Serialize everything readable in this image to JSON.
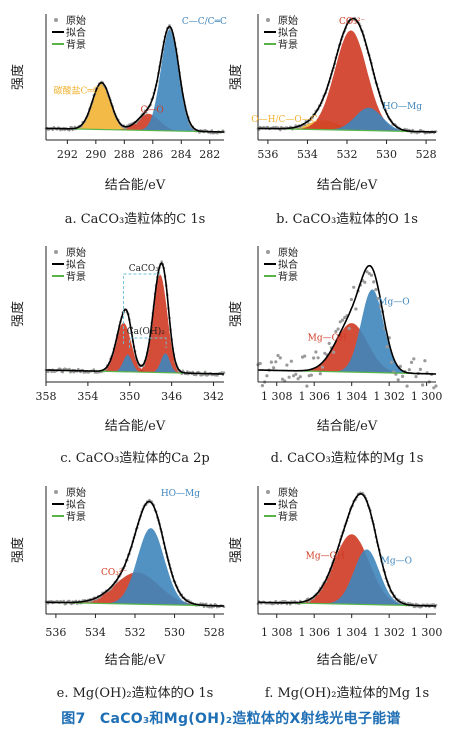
{
  "legend": {
    "raw": "原始",
    "fit": "拟合",
    "bg": "背景"
  },
  "colors": {
    "blue": "#3f86bd",
    "red": "#cf3a23",
    "orange": "#f2b233",
    "bg_line": "#59b54a",
    "points": "#9a9a9a",
    "fit": "#000000",
    "caption": "#1f6fb5"
  },
  "figure_caption": "图7　CaCO₃和Mg(OH)₂造粒体的X射线光电子能谱",
  "chart_data": [
    {
      "type": "line",
      "id": "a",
      "caption": "a. CaCO₃造粒体的C 1s",
      "xlabel": "结合能/eV",
      "ylabel": "强度",
      "xlim": [
        293.5,
        281.0
      ],
      "xticks": [
        "292",
        "290",
        "288",
        "286",
        "284",
        "282"
      ],
      "y_ticks_shown": false,
      "legend_position": "top-left",
      "series": [
        {
          "name": "原始",
          "style": "points"
        },
        {
          "name": "拟合",
          "style": "line"
        },
        {
          "name": "背景",
          "style": "line"
        }
      ],
      "peaks": [
        {
          "label": "碳酸盐C═O",
          "center": 289.6,
          "height": 0.45,
          "fwhm": 1.5,
          "color": "orange"
        },
        {
          "label": "C—O",
          "center": 286.3,
          "height": 0.16,
          "fwhm": 1.8,
          "color": "red"
        },
        {
          "label": "C—C/C═C",
          "center": 284.8,
          "height": 0.98,
          "fwhm": 1.5,
          "color": "blue"
        }
      ]
    },
    {
      "type": "line",
      "id": "b",
      "caption": "b. CaCO₃造粒体的O 1s",
      "xlabel": "结合能/eV",
      "ylabel": "强度",
      "xlim": [
        536.5,
        527.5
      ],
      "xticks": [
        "536",
        "534",
        "532",
        "530",
        "528"
      ],
      "y_ticks_shown": false,
      "legend_position": "top-left",
      "series": [
        {
          "name": "原始",
          "style": "points"
        },
        {
          "name": "拟合",
          "style": "line"
        },
        {
          "name": "背景",
          "style": "line"
        }
      ],
      "peaks": [
        {
          "label": "O—H/C—O—C",
          "center": 533.2,
          "height": 0.09,
          "fwhm": 1.8,
          "color": "orange"
        },
        {
          "label": "CO₃²⁻",
          "center": 531.8,
          "height": 0.96,
          "fwhm": 1.9,
          "color": "red"
        },
        {
          "label": "HO—Mg",
          "center": 530.9,
          "height": 0.22,
          "fwhm": 1.6,
          "color": "blue"
        }
      ]
    },
    {
      "type": "line",
      "id": "c",
      "caption": "c. CaCO₃造粒体的Ca 2p",
      "xlabel": "结合能/eV",
      "ylabel": "强度",
      "xlim": [
        358,
        341
      ],
      "xticks": [
        "358",
        "354",
        "350",
        "346",
        "342"
      ],
      "y_ticks_shown": false,
      "legend_position": "top-left",
      "series": [
        {
          "name": "原始",
          "style": "points"
        },
        {
          "name": "拟合",
          "style": "line"
        },
        {
          "name": "背景",
          "style": "line"
        }
      ],
      "annotations": [
        "CaCO₃",
        "Ca(OH)₂"
      ],
      "peaks": [
        {
          "label": "CaCO₃",
          "center": 350.6,
          "height": 0.43,
          "fwhm": 1.7,
          "color": "red"
        },
        {
          "label": "Ca(OH)₂",
          "center": 350.2,
          "height": 0.15,
          "fwhm": 1.0,
          "color": "blue"
        },
        {
          "label": "CaCO₃",
          "center": 347.1,
          "height": 0.86,
          "fwhm": 1.6,
          "color": "red"
        },
        {
          "label": "Ca(OH)₂",
          "center": 346.6,
          "height": 0.17,
          "fwhm": 1.0,
          "color": "blue"
        }
      ]
    },
    {
      "type": "line",
      "id": "d",
      "caption": "d. CaCO₃造粒体的Mg 1s",
      "xlabel": "结合能/eV",
      "ylabel": "强度",
      "xlim": [
        1309,
        1299.5
      ],
      "xticks": [
        "1 308",
        "1 306",
        "1 304",
        "1 302",
        "1 300"
      ],
      "y_ticks_shown": false,
      "legend_position": "top-left",
      "series": [
        {
          "name": "原始",
          "style": "points"
        },
        {
          "name": "拟合",
          "style": "line"
        },
        {
          "name": "背景",
          "style": "line"
        }
      ],
      "peaks": [
        {
          "label": "Mg—OH",
          "center": 1304.0,
          "height": 0.43,
          "fwhm": 2.0,
          "color": "red"
        },
        {
          "label": "Mg—O",
          "center": 1302.9,
          "height": 0.73,
          "fwhm": 1.4,
          "color": "blue"
        }
      ]
    },
    {
      "type": "line",
      "id": "e",
      "caption": "e. Mg(OH)₂造粒体的O 1s",
      "xlabel": "结合能/eV",
      "ylabel": "强度",
      "xlim": [
        536.5,
        527.5
      ],
      "xticks": [
        "536",
        "534",
        "532",
        "530",
        "528"
      ],
      "y_ticks_shown": false,
      "legend_position": "top-left",
      "series": [
        {
          "name": "原始",
          "style": "points"
        },
        {
          "name": "拟合",
          "style": "line"
        },
        {
          "name": "背景",
          "style": "line"
        }
      ],
      "peaks": [
        {
          "label": "CO₃²⁻",
          "center": 531.9,
          "height": 0.3,
          "fwhm": 2.6,
          "color": "red"
        },
        {
          "label": "HO—Mg",
          "center": 531.2,
          "height": 0.72,
          "fwhm": 1.6,
          "color": "blue"
        }
      ]
    },
    {
      "type": "line",
      "id": "f",
      "caption": "f. Mg(OH)₂造粒体的Mg 1s",
      "xlabel": "结合能/eV",
      "ylabel": "强度",
      "xlim": [
        1309,
        1299.5
      ],
      "xticks": [
        "1 308",
        "1 306",
        "1 304",
        "1 302",
        "1 300"
      ],
      "y_ticks_shown": false,
      "legend_position": "top-left",
      "series": [
        {
          "name": "原始",
          "style": "points"
        },
        {
          "name": "拟合",
          "style": "line"
        },
        {
          "name": "背景",
          "style": "line"
        }
      ],
      "peaks": [
        {
          "label": "Mg—OH",
          "center": 1304.0,
          "height": 0.66,
          "fwhm": 2.2,
          "color": "red"
        },
        {
          "label": "Mg—O",
          "center": 1303.2,
          "height": 0.52,
          "fwhm": 1.6,
          "color": "blue"
        }
      ]
    }
  ]
}
